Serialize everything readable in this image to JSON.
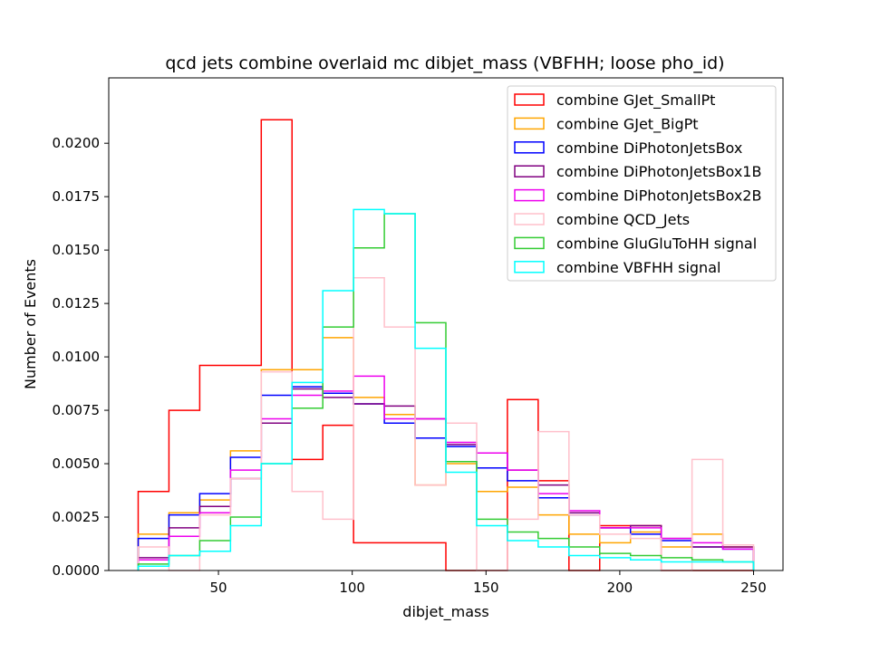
{
  "chart_data": {
    "type": "step-histogram",
    "title": "qcd jets combine overlaid mc dibjet_mass (VBFHH; loose pho_id)",
    "xlabel": "dibjet_mass",
    "ylabel": "Number of Events",
    "xlim": [
      9,
      261
    ],
    "ylim": [
      0,
      0.02306
    ],
    "xticks": [
      50,
      100,
      150,
      200,
      250
    ],
    "xtick_labels": [
      "50",
      "100",
      "150",
      "200",
      "250"
    ],
    "yticks": [
      0,
      0.0025,
      0.005,
      0.0075,
      0.01,
      0.0125,
      0.015,
      0.0175,
      0.02
    ],
    "ytick_labels": [
      "0.0000",
      "0.0025",
      "0.0050",
      "0.0075",
      "0.0100",
      "0.0125",
      "0.0150",
      "0.0175",
      "0.0200"
    ],
    "grid": false,
    "legend_position": "top-right",
    "bin_edges": [
      20,
      31.5,
      43,
      54.5,
      66,
      77.5,
      89,
      100.5,
      112,
      123.5,
      135,
      146.5,
      158,
      169.5,
      181,
      192.5,
      204,
      215.5,
      227,
      238.5,
      250
    ],
    "series": [
      {
        "name": "combine GJet_SmallPt",
        "color": "#ff0000",
        "values": [
          0.0037,
          0.0075,
          0.0096,
          0.0096,
          0.0211,
          0.0052,
          0.0068,
          0.0013,
          0.0013,
          0.0013,
          0.0,
          0.0,
          0.008,
          0.0042,
          0.0,
          0.0021,
          0.0021,
          0.0,
          0.0,
          0.0
        ]
      },
      {
        "name": "combine GJet_BigPt",
        "color": "#ffa500",
        "values": [
          0.0017,
          0.0027,
          0.0033,
          0.0056,
          0.0094,
          0.0094,
          0.0109,
          0.0081,
          0.0073,
          0.004,
          0.005,
          0.0037,
          0.0039,
          0.0026,
          0.0017,
          0.0013,
          0.0018,
          0.0011,
          0.0017,
          0.0011
        ]
      },
      {
        "name": "combine DiPhotonJetsBox",
        "color": "#0000ff",
        "values": [
          0.0015,
          0.0026,
          0.0036,
          0.0053,
          0.0082,
          0.0086,
          0.0083,
          0.0078,
          0.0069,
          0.0062,
          0.0058,
          0.0048,
          0.0042,
          0.0034,
          0.0026,
          0.002,
          0.0017,
          0.0014,
          0.0011,
          0.001
        ]
      },
      {
        "name": "combine DiPhotonJetsBox1B",
        "color": "#800080",
        "values": [
          0.0006,
          0.002,
          0.003,
          0.0043,
          0.0069,
          0.0085,
          0.0081,
          0.0078,
          0.0077,
          0.0071,
          0.0059,
          0.0055,
          0.0047,
          0.004,
          0.0027,
          0.002,
          0.0021,
          0.0015,
          0.0011,
          0.0011
        ]
      },
      {
        "name": "combine DiPhotonJetsBox2B",
        "color": "#ee00ee",
        "values": [
          0.0005,
          0.0016,
          0.0027,
          0.0047,
          0.0071,
          0.0082,
          0.0084,
          0.0091,
          0.0071,
          0.0071,
          0.006,
          0.0055,
          0.0047,
          0.0036,
          0.0028,
          0.002,
          0.002,
          0.0015,
          0.0013,
          0.001
        ]
      },
      {
        "name": "combine QCD_Jets",
        "color": "#ffc0cb",
        "values": [
          0.0011,
          0.0,
          0.0026,
          0.0043,
          0.0093,
          0.0037,
          0.0024,
          0.0137,
          0.0114,
          0.004,
          0.0069,
          0.0,
          0.0024,
          0.0065,
          0.0026,
          0.0017,
          0.0015,
          0.0,
          0.0052,
          0.0012
        ]
      },
      {
        "name": "combine GluGluToHH signal",
        "color": "#33cc33",
        "values": [
          0.0003,
          0.0007,
          0.0014,
          0.0025,
          0.005,
          0.0076,
          0.0114,
          0.0151,
          0.0167,
          0.0116,
          0.0051,
          0.0024,
          0.0018,
          0.0015,
          0.0011,
          0.0008,
          0.0007,
          0.0006,
          0.0005,
          0.0004
        ]
      },
      {
        "name": "combine VBFHH signal",
        "color": "#00ffff",
        "values": [
          0.0002,
          0.0007,
          0.0009,
          0.0021,
          0.005,
          0.0088,
          0.0131,
          0.0169,
          0.0167,
          0.0104,
          0.0046,
          0.0021,
          0.0014,
          0.0011,
          0.0007,
          0.0006,
          0.0005,
          0.0004,
          0.0004,
          0.0004
        ]
      }
    ]
  }
}
